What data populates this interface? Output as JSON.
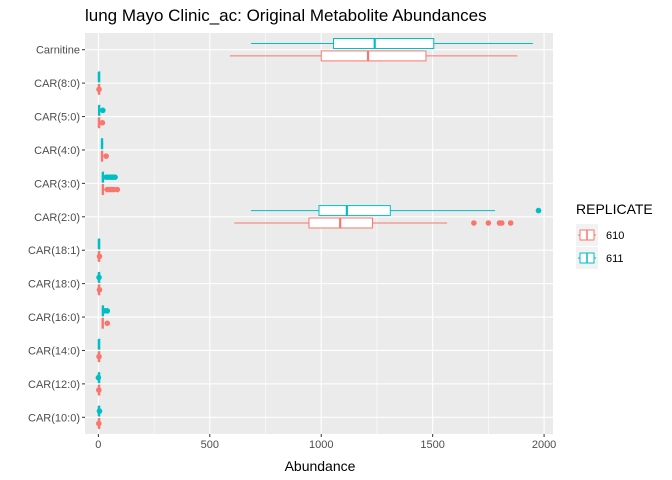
{
  "chart_data": {
    "type": "boxplot",
    "orientation": "horizontal",
    "title": "lung Mayo Clinic_ac: Original Metabolite Abundances",
    "xlabel": "Abundance",
    "ylabel": "",
    "xlim": [
      -60,
      2040
    ],
    "x_ticks": [
      0,
      500,
      1000,
      1500,
      2000
    ],
    "grid": true,
    "legend": {
      "title": "REPLICATE",
      "position": "right"
    },
    "categories": [
      "Carnitine",
      "CAR(8:0)",
      "CAR(5:0)",
      "CAR(4:0)",
      "CAR(3:0)",
      "CAR(2:0)",
      "CAR(18:1)",
      "CAR(18:0)",
      "CAR(16:0)",
      "CAR(14:0)",
      "CAR(12:0)",
      "CAR(10:0)"
    ],
    "series": [
      {
        "name": "610",
        "color": "#F8766D",
        "boxes": [
          {
            "min": 590,
            "q1": 1000,
            "median": 1210,
            "q3": 1470,
            "max": 1880,
            "outliers": []
          },
          {
            "min": 0,
            "q1": 1,
            "median": 2,
            "q3": 3,
            "max": 5,
            "outliers": [
              3
            ]
          },
          {
            "min": 0,
            "q1": 1,
            "median": 2,
            "q3": 3,
            "max": 5,
            "outliers": [
              18
            ]
          },
          {
            "min": 12,
            "q1": 14,
            "median": 16,
            "q3": 18,
            "max": 22,
            "outliers": [
              35
            ]
          },
          {
            "min": 15,
            "q1": 18,
            "median": 20,
            "q3": 23,
            "max": 28,
            "outliers": [
              40,
              50,
              60,
              70,
              85
            ]
          },
          {
            "min": 610,
            "q1": 945,
            "median": 1085,
            "q3": 1230,
            "max": 1565,
            "outliers": [
              1685,
              1750,
              1800,
              1810,
              1850
            ]
          },
          {
            "min": 0,
            "q1": 1,
            "median": 2,
            "q3": 3,
            "max": 5,
            "outliers": [
              5
            ]
          },
          {
            "min": 0,
            "q1": 1,
            "median": 2,
            "q3": 3,
            "max": 5,
            "outliers": [
              5
            ]
          },
          {
            "min": 15,
            "q1": 17,
            "median": 19,
            "q3": 21,
            "max": 24,
            "outliers": [
              40
            ]
          },
          {
            "min": 0,
            "q1": 1,
            "median": 2,
            "q3": 3,
            "max": 5,
            "outliers": [
              3
            ]
          },
          {
            "min": 0,
            "q1": 1,
            "median": 2,
            "q3": 3,
            "max": 5,
            "outliers": [
              2
            ]
          },
          {
            "min": 0,
            "q1": 1,
            "median": 2,
            "q3": 3,
            "max": 5,
            "outliers": [
              2
            ]
          }
        ]
      },
      {
        "name": "611",
        "color": "#00BFC4",
        "boxes": [
          {
            "min": 685,
            "q1": 1055,
            "median": 1240,
            "q3": 1505,
            "max": 1950,
            "outliers": []
          },
          {
            "min": 0,
            "q1": 1,
            "median": 2,
            "q3": 3,
            "max": 5,
            "outliers": []
          },
          {
            "min": 0,
            "q1": 1,
            "median": 3,
            "q3": 5,
            "max": 8,
            "outliers": [
              20
            ]
          },
          {
            "min": 12,
            "q1": 14,
            "median": 16,
            "q3": 18,
            "max": 22,
            "outliers": []
          },
          {
            "min": 15,
            "q1": 18,
            "median": 20,
            "q3": 23,
            "max": 28,
            "outliers": [
              35,
              45,
              55,
              65,
              75
            ]
          },
          {
            "min": 685,
            "q1": 990,
            "median": 1115,
            "q3": 1310,
            "max": 1780,
            "outliers": [
              1975
            ]
          },
          {
            "min": 0,
            "q1": 1,
            "median": 2,
            "q3": 3,
            "max": 5,
            "outliers": []
          },
          {
            "min": 0,
            "q1": 1,
            "median": 2,
            "q3": 3,
            "max": 5,
            "outliers": [
              3
            ]
          },
          {
            "min": 15,
            "q1": 18,
            "median": 20,
            "q3": 22,
            "max": 25,
            "outliers": [
              30,
              40
            ]
          },
          {
            "min": 0,
            "q1": 1,
            "median": 2,
            "q3": 3,
            "max": 5,
            "outliers": []
          },
          {
            "min": 0,
            "q1": 1,
            "median": 2,
            "q3": 3,
            "max": 5,
            "outliers": [
              0
            ]
          },
          {
            "min": 0,
            "q1": 1,
            "median": 2,
            "q3": 3,
            "max": 5,
            "outliers": [
              5
            ]
          }
        ]
      }
    ],
    "colors": {
      "panel_bg": "#EBEBEB",
      "grid": "#FFFFFF"
    }
  }
}
